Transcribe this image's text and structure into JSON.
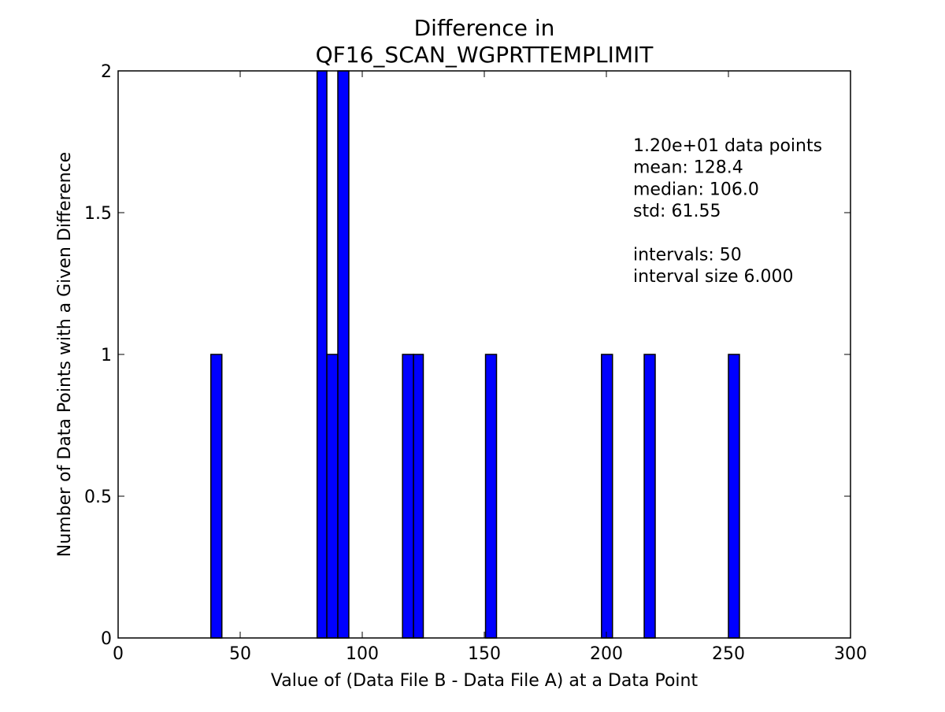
{
  "chart_data": {
    "type": "bar",
    "title_lines": [
      "Difference in",
      "QF16_SCAN_WGPRTTEMPLIMIT"
    ],
    "xlabel": "Value of (Data File B - Data File A) at a Data Point",
    "ylabel": "Number of Data Points with a Given Difference",
    "xlim": [
      0,
      300
    ],
    "ylim": [
      0,
      2
    ],
    "x_ticks": [
      0,
      50,
      100,
      150,
      200,
      250,
      300
    ],
    "x_tick_labels": [
      "0",
      "50",
      "100",
      "150",
      "200",
      "250",
      "300"
    ],
    "y_ticks": [
      0,
      0.5,
      1,
      1.5,
      2
    ],
    "y_tick_labels": [
      "0",
      "0.5",
      "1",
      "1.5",
      "2"
    ],
    "grid": false,
    "bar_color": "#0000ff",
    "bar_edge_color": "#000000",
    "bars": [
      {
        "x0": 38,
        "x1": 42.5,
        "value": 1
      },
      {
        "x0": 81.5,
        "x1": 85.5,
        "value": 2
      },
      {
        "x0": 85.5,
        "x1": 90,
        "value": 1
      },
      {
        "x0": 90,
        "x1": 94.5,
        "value": 2
      },
      {
        "x0": 116.5,
        "x1": 121,
        "value": 1
      },
      {
        "x0": 121,
        "x1": 125,
        "value": 1
      },
      {
        "x0": 150.5,
        "x1": 155,
        "value": 1
      },
      {
        "x0": 198,
        "x1": 202.5,
        "value": 1
      },
      {
        "x0": 215.5,
        "x1": 220,
        "value": 1
      },
      {
        "x0": 250,
        "x1": 254.5,
        "value": 1
      }
    ],
    "annotation_lines": [
      "1.20e+01 data points",
      "mean: 128.4",
      "median: 106.0",
      "std: 61.55",
      "",
      "intervals: 50",
      "interval size 6.000"
    ]
  }
}
